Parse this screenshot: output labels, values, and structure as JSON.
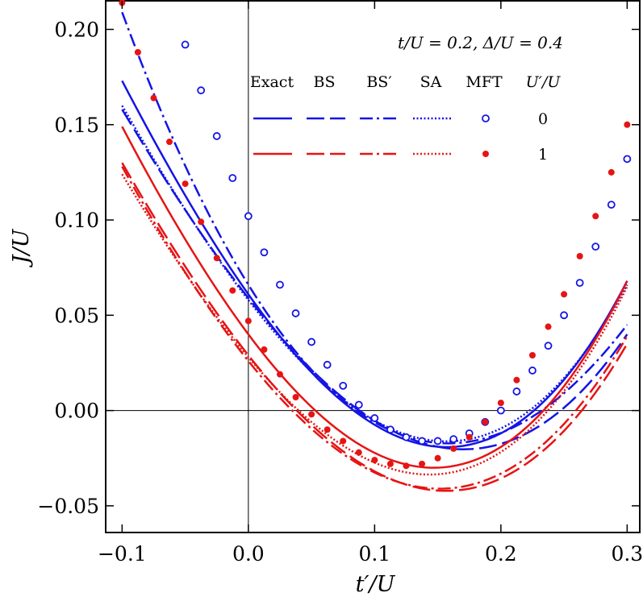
{
  "chart_data": {
    "type": "line",
    "title": "",
    "annotation": "t/U = 0.2, Δ/U = 0.4",
    "xlabel": "t′/U",
    "ylabel": "J/U",
    "xlim": [
      -0.113,
      0.31
    ],
    "ylim": [
      -0.064,
      0.215
    ],
    "xticks": [
      -0.1,
      0.0,
      0.1,
      0.2,
      0.3
    ],
    "xtick_labels": [
      "−0.1",
      "0.0",
      "0.1",
      "0.2",
      "0.3"
    ],
    "yticks": [
      -0.05,
      0.0,
      0.05,
      0.1,
      0.15,
      0.2
    ],
    "ytick_labels": [
      "−0.05",
      "0.00",
      "0.05",
      "0.10",
      "0.15",
      "0.20"
    ],
    "legend": {
      "placement": "top-right",
      "method_headers": [
        "Exact",
        "BS",
        "BS′",
        "SA",
        "MFT"
      ],
      "group_header": "U′/U",
      "rows": [
        {
          "value": "0",
          "color": "#1414e6"
        },
        {
          "value": "1",
          "color": "#e61414"
        }
      ]
    },
    "series": [
      {
        "name": "Exact, U′/U=0",
        "style": "solid",
        "color": "#1414e6",
        "x": [
          -0.1,
          0.0,
          0.15,
          0.3
        ],
        "y": [
          0.173,
          0.061,
          -0.019,
          0.068
        ]
      },
      {
        "name": "BS, U′/U=0",
        "style": "dashed",
        "color": "#1414e6",
        "x": [
          -0.1,
          0.0,
          0.15,
          0.3
        ],
        "y": [
          0.158,
          0.059,
          -0.019,
          0.04
        ]
      },
      {
        "name": "BS′, U′/U=0",
        "style": "dashdot",
        "color": "#1414e6",
        "x": [
          -0.1,
          0.0,
          0.15,
          0.3
        ],
        "y": [
          0.209,
          0.066,
          -0.017,
          0.045
        ]
      },
      {
        "name": "SA, U′/U=0",
        "style": "dotted",
        "color": "#1414e6",
        "x": [
          -0.1,
          0.0,
          0.15,
          0.3
        ],
        "y": [
          0.16,
          0.058,
          -0.016,
          0.066
        ]
      },
      {
        "name": "Exact, U′/U=1",
        "style": "solid",
        "color": "#e61414",
        "x": [
          -0.1,
          0.0,
          0.13,
          0.3
        ],
        "y": [
          0.149,
          0.04,
          -0.029,
          0.068
        ]
      },
      {
        "name": "BS, U′/U=1",
        "style": "dashed",
        "color": "#e61414",
        "x": [
          -0.1,
          0.0,
          0.15,
          0.3
        ],
        "y": [
          0.13,
          0.029,
          -0.042,
          0.035
        ]
      },
      {
        "name": "BS′, U′/U=1",
        "style": "dashdot",
        "color": "#e61414",
        "x": [
          -0.1,
          0.0,
          0.15,
          0.3
        ],
        "y": [
          0.128,
          0.026,
          -0.041,
          0.039
        ]
      },
      {
        "name": "SA, U′/U=1",
        "style": "dotted",
        "color": "#e61414",
        "x": [
          -0.1,
          0.0,
          0.13,
          0.3
        ],
        "y": [
          0.124,
          0.028,
          -0.033,
          0.065
        ]
      }
    ],
    "scatter": [
      {
        "name": "MFT, U′/U=0",
        "marker": "open-circle",
        "color": "#1414e6",
        "x": [
          -0.05,
          -0.0375,
          -0.025,
          -0.0125,
          0.0,
          0.0125,
          0.025,
          0.0375,
          0.05,
          0.0625,
          0.075,
          0.0875,
          0.1,
          0.1125,
          0.125,
          0.1375,
          0.15,
          0.1625,
          0.175,
          0.1875,
          0.2,
          0.2125,
          0.225,
          0.2375,
          0.25,
          0.2625,
          0.275,
          0.2875,
          0.3
        ],
        "y": [
          0.192,
          0.168,
          0.144,
          0.122,
          0.102,
          0.083,
          0.066,
          0.051,
          0.036,
          0.024,
          0.013,
          0.003,
          -0.004,
          -0.01,
          -0.014,
          -0.016,
          -0.016,
          -0.015,
          -0.012,
          -0.006,
          0.0,
          0.01,
          0.021,
          0.034,
          0.05,
          0.067,
          0.086,
          0.108,
          0.132
        ]
      },
      {
        "name": "MFT, U′/U=1",
        "marker": "filled-circle",
        "color": "#e61414",
        "x": [
          -0.1,
          -0.0875,
          -0.075,
          -0.0625,
          -0.05,
          -0.0375,
          -0.025,
          -0.0125,
          0.0,
          0.0125,
          0.025,
          0.0375,
          0.05,
          0.0625,
          0.075,
          0.0875,
          0.1,
          0.1125,
          0.125,
          0.1375,
          0.15,
          0.1625,
          0.175,
          0.1875,
          0.2,
          0.2125,
          0.225,
          0.2375,
          0.25,
          0.2625,
          0.275,
          0.2875,
          0.3
        ],
        "y": [
          0.214,
          0.188,
          0.164,
          0.141,
          0.119,
          0.099,
          0.08,
          0.063,
          0.047,
          0.032,
          0.019,
          0.007,
          -0.002,
          -0.01,
          -0.016,
          -0.022,
          -0.026,
          -0.028,
          -0.029,
          -0.028,
          -0.025,
          -0.02,
          -0.014,
          -0.006,
          0.004,
          0.016,
          0.029,
          0.044,
          0.061,
          0.081,
          0.102,
          0.125,
          0.15
        ]
      }
    ]
  }
}
